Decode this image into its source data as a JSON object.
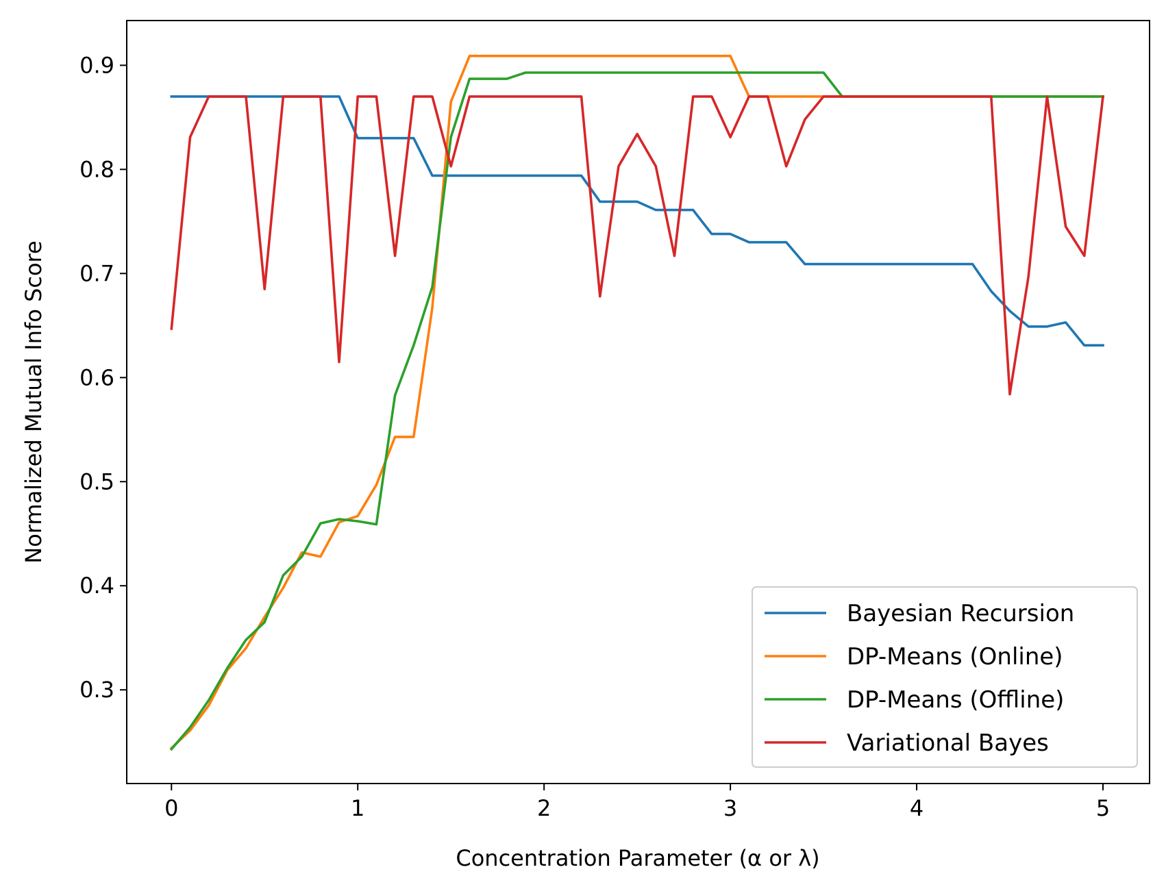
{
  "chart_data": {
    "type": "line",
    "title": "",
    "xlabel": "Concentration Parameter (α or λ)",
    "ylabel": "Normalized Mutual Info Score",
    "xlim": [
      -0.24,
      5.25
    ],
    "ylim": [
      0.21,
      0.943
    ],
    "xticks": [
      0,
      1,
      2,
      3,
      4,
      5
    ],
    "xtick_labels": [
      "0",
      "1",
      "2",
      "3",
      "4",
      "5"
    ],
    "yticks": [
      0.3,
      0.4,
      0.5,
      0.6,
      0.7,
      0.8,
      0.9
    ],
    "ytick_labels": [
      "0.3",
      "0.4",
      "0.5",
      "0.6",
      "0.7",
      "0.8",
      "0.9"
    ],
    "grid": false,
    "legend_position": "lower-right",
    "x": [
      0.0,
      0.1,
      0.2,
      0.3,
      0.4,
      0.5,
      0.6,
      0.7,
      0.8,
      0.9,
      1.0,
      1.1,
      1.2,
      1.3,
      1.4,
      1.5,
      1.6,
      1.7,
      1.8,
      1.9,
      2.0,
      2.1,
      2.2,
      2.3,
      2.4,
      2.5,
      2.6,
      2.7,
      2.8,
      2.9,
      3.0,
      3.1,
      3.2,
      3.3,
      3.4,
      3.5,
      3.6,
      3.7,
      3.8,
      3.9,
      4.0,
      4.1,
      4.2,
      4.3,
      4.4,
      4.5,
      4.6,
      4.7,
      4.8,
      4.9,
      5.0
    ],
    "series": [
      {
        "name": "Bayesian Recursion",
        "color": "#1f77b4",
        "values": [
          0.87,
          0.87,
          0.87,
          0.87,
          0.87,
          0.87,
          0.87,
          0.87,
          0.87,
          0.87,
          0.83,
          0.83,
          0.83,
          0.83,
          0.794,
          0.794,
          0.794,
          0.794,
          0.794,
          0.794,
          0.794,
          0.794,
          0.794,
          0.769,
          0.769,
          0.769,
          0.761,
          0.761,
          0.761,
          0.738,
          0.738,
          0.73,
          0.73,
          0.73,
          0.709,
          0.709,
          0.709,
          0.709,
          0.709,
          0.709,
          0.709,
          0.709,
          0.709,
          0.709,
          0.683,
          0.664,
          0.649,
          0.649,
          0.653,
          0.631,
          0.631
        ]
      },
      {
        "name": "DP-Means (Online)",
        "color": "#ff7f0e",
        "values": [
          0.244,
          0.261,
          0.285,
          0.319,
          0.34,
          0.37,
          0.398,
          0.432,
          0.428,
          0.461,
          0.467,
          0.497,
          0.543,
          0.543,
          0.667,
          0.865,
          0.909,
          0.909,
          0.909,
          0.909,
          0.909,
          0.909,
          0.909,
          0.909,
          0.909,
          0.909,
          0.909,
          0.909,
          0.909,
          0.909,
          0.909,
          0.87,
          0.87,
          0.87,
          0.87,
          0.87,
          0.87,
          0.87,
          0.87,
          0.87,
          0.87,
          0.87,
          0.87,
          0.87,
          0.87,
          0.87,
          0.87,
          0.87,
          0.87,
          0.87,
          0.87
        ]
      },
      {
        "name": "DP-Means (Offline)",
        "color": "#2ca02c",
        "values": [
          0.243,
          0.264,
          0.29,
          0.321,
          0.348,
          0.365,
          0.41,
          0.428,
          0.46,
          0.464,
          0.462,
          0.459,
          0.583,
          0.631,
          0.687,
          0.831,
          0.887,
          0.887,
          0.887,
          0.893,
          0.893,
          0.893,
          0.893,
          0.893,
          0.893,
          0.893,
          0.893,
          0.893,
          0.893,
          0.893,
          0.893,
          0.893,
          0.893,
          0.893,
          0.893,
          0.893,
          0.87,
          0.87,
          0.87,
          0.87,
          0.87,
          0.87,
          0.87,
          0.87,
          0.87,
          0.87,
          0.87,
          0.87,
          0.87,
          0.87,
          0.87
        ]
      },
      {
        "name": "Variational Bayes",
        "color": "#d62728",
        "values": [
          0.647,
          0.831,
          0.87,
          0.87,
          0.87,
          0.685,
          0.87,
          0.87,
          0.87,
          0.615,
          0.87,
          0.87,
          0.717,
          0.87,
          0.87,
          0.803,
          0.87,
          0.87,
          0.87,
          0.87,
          0.87,
          0.87,
          0.87,
          0.678,
          0.803,
          0.834,
          0.803,
          0.717,
          0.87,
          0.87,
          0.831,
          0.87,
          0.87,
          0.803,
          0.848,
          0.87,
          0.87,
          0.87,
          0.87,
          0.87,
          0.87,
          0.87,
          0.87,
          0.87,
          0.87,
          0.584,
          0.697,
          0.87,
          0.745,
          0.717,
          0.87
        ]
      }
    ]
  }
}
